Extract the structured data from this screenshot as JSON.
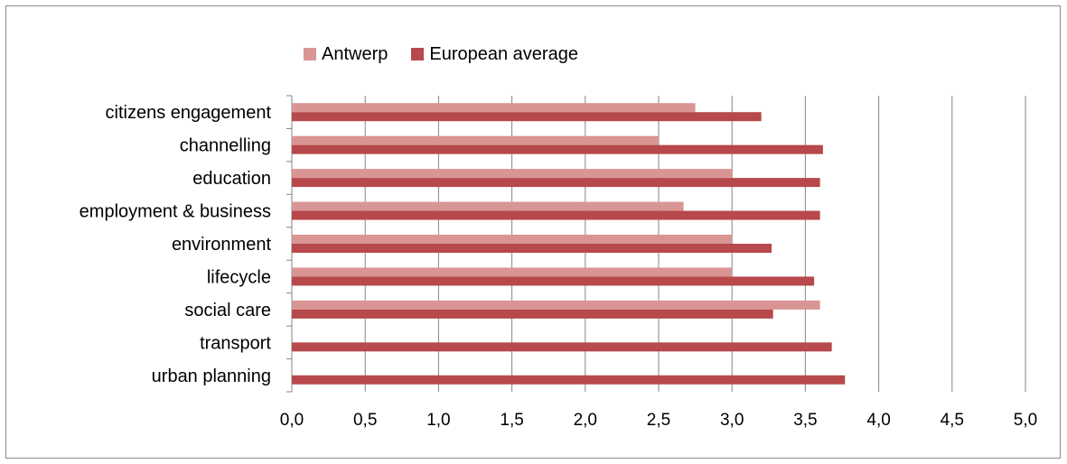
{
  "chart_data": {
    "type": "bar",
    "orientation": "horizontal",
    "categories": [
      "citizens engagement",
      "channelling",
      "education",
      "employment & business",
      "environment",
      "lifecycle",
      "social care",
      "transport",
      "urban planning"
    ],
    "series": [
      {
        "name": "Antwerp",
        "color": "#d99594",
        "values": [
          2.75,
          2.5,
          3.0,
          2.67,
          3.0,
          3.0,
          3.6,
          0,
          0
        ]
      },
      {
        "name": "European average",
        "color": "#b7484b",
        "values": [
          3.2,
          3.62,
          3.6,
          3.6,
          3.27,
          3.56,
          3.28,
          3.68,
          3.77
        ]
      }
    ],
    "xlim": [
      0,
      5
    ],
    "xticks": [
      "0,0",
      "0,5",
      "1,0",
      "1,5",
      "2,0",
      "2,5",
      "3,0",
      "3,5",
      "4,0",
      "4,5",
      "5,0"
    ],
    "grid": "vertical",
    "legend_position": "top"
  }
}
